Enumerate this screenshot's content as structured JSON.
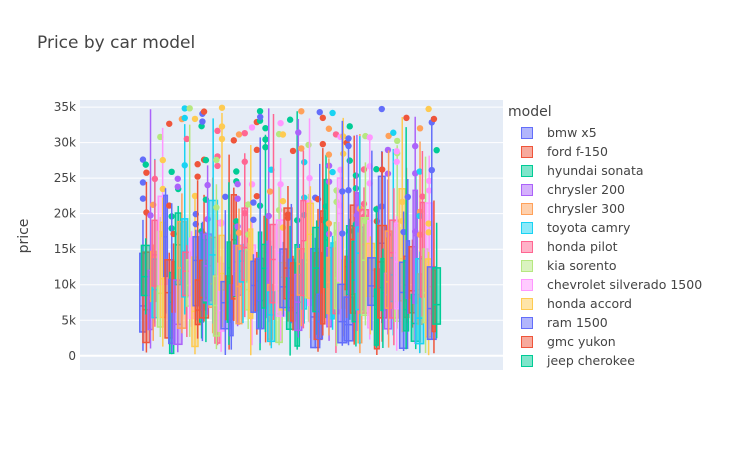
{
  "chart_data": {
    "type": "box",
    "title": "Price by car model",
    "ylabel": "price",
    "xlabel": "",
    "ylim": [
      -2000,
      36000
    ],
    "yticks": [
      0,
      5000,
      10000,
      15000,
      20000,
      25000,
      30000,
      35000
    ],
    "ytick_labels": [
      "0",
      "5k",
      "10k",
      "15k",
      "20k",
      "25k",
      "30k",
      "35k"
    ],
    "legend_title": "model",
    "legend_position": "right",
    "grid": true,
    "series": [
      {
        "name": "bmw x5",
        "color": "#636efa"
      },
      {
        "name": "ford f-150",
        "color": "#ef553b"
      },
      {
        "name": "hyundai sonata",
        "color": "#00cc96"
      },
      {
        "name": "chrysler 200",
        "color": "#ab63fa"
      },
      {
        "name": "chrysler 300",
        "color": "#ffa15a"
      },
      {
        "name": "toyota camry",
        "color": "#19d3f3"
      },
      {
        "name": "honda pilot",
        "color": "#ff6692"
      },
      {
        "name": "kia sorento",
        "color": "#b6e880"
      },
      {
        "name": "chevrolet silverado 1500",
        "color": "#ff97ff"
      },
      {
        "name": "honda accord",
        "color": "#fecb52"
      },
      {
        "name": "ram 1500",
        "color": "#636efa"
      },
      {
        "name": "gmc yukon",
        "color": "#ef553b"
      },
      {
        "name": "jeep cherokee",
        "color": "#00cc96"
      }
    ]
  }
}
